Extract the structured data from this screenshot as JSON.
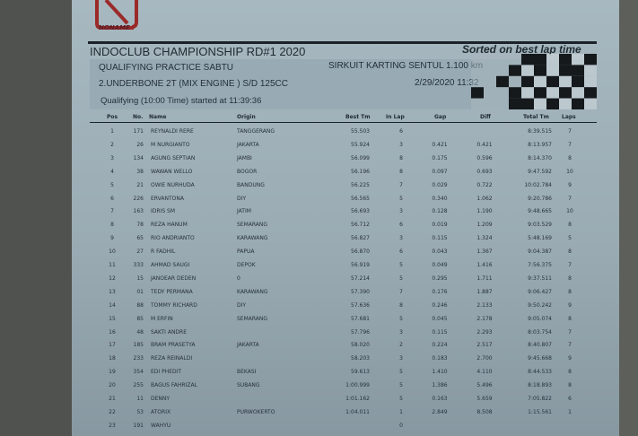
{
  "logo": {
    "text": "NONAME",
    "color": "#9a2a2a"
  },
  "header": {
    "title": "INDOCLUB CHAMPIONSHIP RD#1 2020",
    "sorted": "Sorted on best lap time",
    "session": "QUALIFYING PRACTICE SABTU",
    "circuit": "SIRKUIT KARTING SENTUL 1.100 km",
    "class": "2.UNDERBONE  2T (MIX ENGINE ) S/D 125CC",
    "datetime": "2/29/2020 11:32",
    "started": "Qualifying (10:00 Time) started at 11:39:36"
  },
  "columns": {
    "pos": "Pos",
    "no": "No.",
    "name": "Name",
    "origin": "Origin",
    "best": "Best Tm",
    "inlap": "In Lap",
    "gap": "Gap",
    "diff": "Diff",
    "total": "Total Tm",
    "laps": "Laps"
  },
  "rows": [
    {
      "pos": "1",
      "no": "171",
      "name": "REYNALDI RERE",
      "origin": "TANGGERANG",
      "best": "55.503",
      "inlap": "6",
      "gap": "",
      "diff": "",
      "total": "8:39.515",
      "laps": "7"
    },
    {
      "pos": "2",
      "no": "26",
      "name": "M NURGIANTO",
      "origin": "JAKARTA",
      "best": "55.924",
      "inlap": "3",
      "gap": "0.421",
      "diff": "0.421",
      "total": "8:13.957",
      "laps": "7"
    },
    {
      "pos": "3",
      "no": "134",
      "name": "AGUNG SEPTIAN",
      "origin": "JAMBI",
      "best": "56.099",
      "inlap": "8",
      "gap": "0.175",
      "diff": "0.596",
      "total": "8:14.370",
      "laps": "8"
    },
    {
      "pos": "4",
      "no": "38",
      "name": "WAWAN WELLO",
      "origin": "BOGOR",
      "best": "56.196",
      "inlap": "8",
      "gap": "0.097",
      "diff": "0.693",
      "total": "9:47.592",
      "laps": "10"
    },
    {
      "pos": "5",
      "no": "21",
      "name": "OWIE NURHUDA",
      "origin": "BANDUNG",
      "best": "56.225",
      "inlap": "7",
      "gap": "0.029",
      "diff": "0.722",
      "total": "10:02.784",
      "laps": "9"
    },
    {
      "pos": "6",
      "no": "226",
      "name": "ERVANTONA",
      "origin": "DIY",
      "best": "56.565",
      "inlap": "5",
      "gap": "0.340",
      "diff": "1.062",
      "total": "9:20.786",
      "laps": "7"
    },
    {
      "pos": "7",
      "no": "163",
      "name": "IDRIS SM",
      "origin": "JATIM",
      "best": "56.693",
      "inlap": "3",
      "gap": "0.128",
      "diff": "1.190",
      "total": "9:48.665",
      "laps": "10"
    },
    {
      "pos": "8",
      "no": "78",
      "name": "REZA HANUM",
      "origin": "SEMARANG",
      "best": "56.712",
      "inlap": "6",
      "gap": "0.019",
      "diff": "1.209",
      "total": "9:03.529",
      "laps": "8"
    },
    {
      "pos": "9",
      "no": "65",
      "name": "RIO ANDRIANTO",
      "origin": "KARAWANG",
      "best": "56.827",
      "inlap": "3",
      "gap": "0.115",
      "diff": "1.324",
      "total": "5:48.169",
      "laps": "5"
    },
    {
      "pos": "10",
      "no": "27",
      "name": "R FADHIL",
      "origin": "PAPUA",
      "best": "56.870",
      "inlap": "6",
      "gap": "0.043",
      "diff": "1.367",
      "total": "9:04.387",
      "laps": "8"
    },
    {
      "pos": "11",
      "no": "333",
      "name": "AHMAD SAUGI",
      "origin": "DEPOK",
      "best": "56.919",
      "inlap": "5",
      "gap": "0.049",
      "diff": "1.416",
      "total": "7:56.375",
      "laps": "7"
    },
    {
      "pos": "12",
      "no": "15",
      "name": "JANOEAR DEDEN",
      "origin": "0",
      "best": "57.214",
      "inlap": "5",
      "gap": "0.295",
      "diff": "1.711",
      "total": "9:37.511",
      "laps": "8"
    },
    {
      "pos": "13",
      "no": "01",
      "name": "TEDY PERMANA",
      "origin": "KARAWANG",
      "best": "57.390",
      "inlap": "7",
      "gap": "0.176",
      "diff": "1.887",
      "total": "9:06.427",
      "laps": "8"
    },
    {
      "pos": "14",
      "no": "88",
      "name": "TOMMY RICHARD",
      "origin": "DIY",
      "best": "57.636",
      "inlap": "8",
      "gap": "0.246",
      "diff": "2.133",
      "total": "9:50.242",
      "laps": "9"
    },
    {
      "pos": "15",
      "no": "85",
      "name": "M ERFIN",
      "origin": "SEMARANG",
      "best": "57.681",
      "inlap": "5",
      "gap": "0.045",
      "diff": "2.178",
      "total": "9:05.074",
      "laps": "8"
    },
    {
      "pos": "16",
      "no": "48",
      "name": "SAKTI ANDRE",
      "origin": "",
      "best": "57.796",
      "inlap": "3",
      "gap": "0.115",
      "diff": "2.293",
      "total": "8:03.754",
      "laps": "7"
    },
    {
      "pos": "17",
      "no": "185",
      "name": "BRAM PRASETYA",
      "origin": "JAKARTA",
      "best": "58.020",
      "inlap": "2",
      "gap": "0.224",
      "diff": "2.517",
      "total": "8:40.807",
      "laps": "7"
    },
    {
      "pos": "18",
      "no": "233",
      "name": "REZA REINALDI",
      "origin": "",
      "best": "58.203",
      "inlap": "3",
      "gap": "0.183",
      "diff": "2.700",
      "total": "9:45.668",
      "laps": "9"
    },
    {
      "pos": "19",
      "no": "354",
      "name": "EDI PHEDIT",
      "origin": "BEKASI",
      "best": "59.613",
      "inlap": "5",
      "gap": "1.410",
      "diff": "4.110",
      "total": "8:44.533",
      "laps": "8"
    },
    {
      "pos": "20",
      "no": "255",
      "name": "BAGUS FAHRIZAL",
      "origin": "SUBANG",
      "best": "1:00.999",
      "inlap": "5",
      "gap": "1.386",
      "diff": "5.496",
      "total": "8:18.893",
      "laps": "8"
    },
    {
      "pos": "21",
      "no": "11",
      "name": "DENNY",
      "origin": "",
      "best": "1:01.162",
      "inlap": "5",
      "gap": "0.163",
      "diff": "5.659",
      "total": "7:05.822",
      "laps": "6"
    },
    {
      "pos": "22",
      "no": "53",
      "name": "ATORIX",
      "origin": "PURWOKERTO",
      "best": "1:04.011",
      "inlap": "1",
      "gap": "2.849",
      "diff": "8.508",
      "total": "1:15.561",
      "laps": "1"
    },
    {
      "pos": "23",
      "no": "191",
      "name": "WAHYU",
      "origin": "",
      "best": "",
      "inlap": "0",
      "gap": "",
      "diff": "",
      "total": "",
      "laps": ""
    }
  ]
}
